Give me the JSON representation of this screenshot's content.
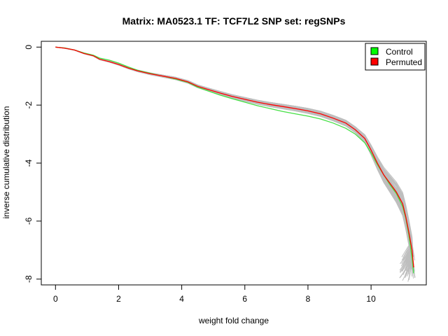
{
  "chart_data": {
    "type": "line",
    "title": "Matrix: MA0523.1 TF: TCF7L2 SNP set: regSNPs",
    "xlabel": "weight fold change",
    "ylabel": "inverse cumulative distribution",
    "xlim": [
      -0.45,
      11.75
    ],
    "ylim": [
      -8.2,
      0.2
    ],
    "xticks": [
      0,
      2,
      4,
      6,
      8,
      10
    ],
    "yticks": [
      0,
      -2,
      -4,
      -6,
      -8
    ],
    "grid": false,
    "legend_position": "top-right",
    "legend": [
      {
        "label": "Control",
        "color": "#00ff00"
      },
      {
        "label": "Permuted",
        "color": "#ff0000"
      }
    ],
    "background_series": {
      "color": "#bebebe",
      "description_count_visible": "many gray permutation curves"
    },
    "series": [
      {
        "name": "Control",
        "color": "#44e044",
        "x": [
          0,
          0.3,
          0.6,
          0.9,
          1.2,
          1.4,
          1.7,
          2.0,
          2.3,
          2.6,
          3.0,
          3.4,
          3.8,
          4.2,
          4.5,
          4.8,
          5.2,
          5.6,
          6.0,
          6.4,
          6.8,
          7.2,
          7.6,
          8.0,
          8.4,
          8.8,
          9.2,
          9.5,
          9.8,
          10.0,
          10.2,
          10.4,
          10.6,
          10.8,
          11.0,
          11.1,
          11.2,
          11.3,
          11.35
        ],
        "y": [
          0,
          -0.03,
          -0.1,
          -0.2,
          -0.28,
          -0.38,
          -0.45,
          -0.55,
          -0.68,
          -0.8,
          -0.9,
          -1.0,
          -1.1,
          -1.22,
          -1.38,
          -1.5,
          -1.65,
          -1.78,
          -1.9,
          -2.02,
          -2.12,
          -2.22,
          -2.3,
          -2.38,
          -2.48,
          -2.62,
          -2.8,
          -3.0,
          -3.3,
          -3.65,
          -4.05,
          -4.4,
          -4.75,
          -5.05,
          -5.5,
          -5.9,
          -6.5,
          -7.3,
          -7.8
        ]
      },
      {
        "name": "Permuted",
        "color": "#ff0000",
        "x": [
          0,
          0.3,
          0.6,
          0.9,
          1.2,
          1.4,
          1.7,
          2.0,
          2.3,
          2.6,
          3.0,
          3.4,
          3.8,
          4.2,
          4.5,
          4.8,
          5.2,
          5.6,
          6.0,
          6.4,
          6.8,
          7.2,
          7.6,
          8.0,
          8.4,
          8.8,
          9.2,
          9.5,
          9.8,
          10.0,
          10.2,
          10.4,
          10.6,
          10.8,
          11.0,
          11.1,
          11.2,
          11.3,
          11.35
        ],
        "y": [
          0,
          -0.04,
          -0.1,
          -0.22,
          -0.3,
          -0.42,
          -0.5,
          -0.6,
          -0.72,
          -0.82,
          -0.92,
          -1.0,
          -1.08,
          -1.2,
          -1.35,
          -1.45,
          -1.58,
          -1.7,
          -1.8,
          -1.9,
          -1.98,
          -2.05,
          -2.12,
          -2.2,
          -2.3,
          -2.45,
          -2.62,
          -2.85,
          -3.15,
          -3.55,
          -4.0,
          -4.4,
          -4.7,
          -5.0,
          -5.4,
          -5.85,
          -6.4,
          -7.0,
          -7.6
        ]
      }
    ]
  }
}
